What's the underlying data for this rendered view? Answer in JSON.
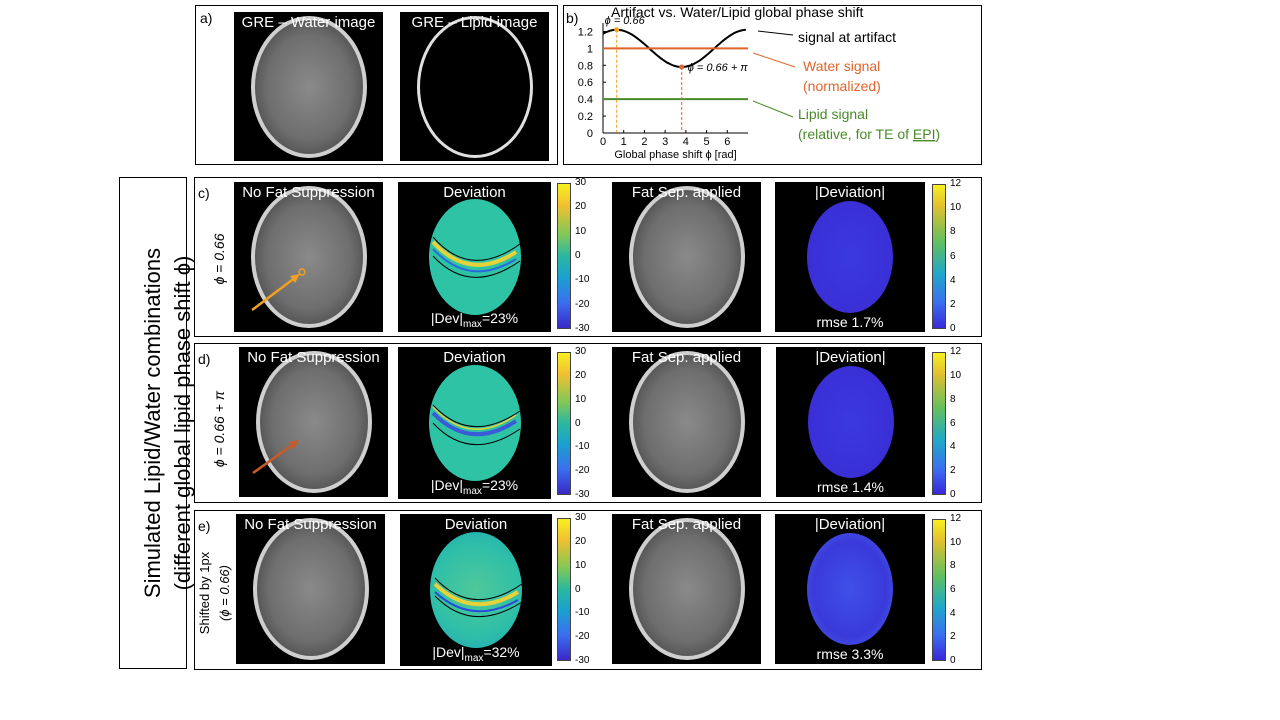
{
  "panel_labels": {
    "a": "a)",
    "b": "b)",
    "c": "c)",
    "d": "d)",
    "e": "e)"
  },
  "panel_a": {
    "water_title": "GRE – Water image",
    "lipid_title": "GRE – Lipid image"
  },
  "panel_b": {
    "title": "Artifact vs. Water/Lipid global phase shift",
    "phi_annot_1": "ϕ = 0.66",
    "phi_annot_2": "ϕ = 0.66 + π",
    "legend_artifact": "signal at artifact",
    "legend_water_1": "Water signal",
    "legend_water_2": "(normalized)",
    "legend_lipid_1": "Lipid signal",
    "legend_lipid_2_pre": "(relative, for TE of ",
    "legend_lipid_2_epi": "EPI",
    "legend_lipid_2_post": ")",
    "colors": {
      "artifact": "#000000",
      "water": "#e0642a",
      "lipid": "#4a8a2a",
      "marker": "#f0a020"
    }
  },
  "side_label": {
    "line1": "Simulated Lipid/Water combinations",
    "line2": "(different global lipid phase shift ϕ)"
  },
  "rows": {
    "c": {
      "phi_label": "ϕ = 0.66",
      "no_fat": "No Fat Suppression",
      "deviation": "Deviation",
      "dev_max_pre": "|Dev|",
      "dev_max_sub": "max",
      "dev_max_post": "=23%",
      "fat_sep": "Fat Sep. applied",
      "abs_dev": "|Deviation|",
      "rmse": "rmse 1.7%"
    },
    "d": {
      "phi_label": "ϕ = 0.66 + π",
      "no_fat": "No Fat Suppression",
      "deviation": "Deviation",
      "dev_max_pre": "|Dev|",
      "dev_max_sub": "max",
      "dev_max_post": "=23%",
      "fat_sep": "Fat Sep. applied",
      "abs_dev": "|Deviation|",
      "rmse": "rmse 1.4%"
    },
    "e": {
      "phi_label_1": "Shifted by 1px",
      "phi_label_2": "(ϕ = 0.66)",
      "no_fat": "No Fat Suppression",
      "deviation": "Deviation",
      "dev_max_pre": "|Dev|",
      "dev_max_sub": "max",
      "dev_max_post": "=32%",
      "fat_sep": "Fat Sep. applied",
      "abs_dev": "|Deviation|",
      "rmse": "rmse 3.3%"
    }
  },
  "colorbar_dev_ticks": [
    "30",
    "20",
    "10",
    "0",
    "-10",
    "-20",
    "-30"
  ],
  "colorbar_abs_ticks": [
    "12",
    "10",
    "8",
    "6",
    "4",
    "2",
    "0"
  ],
  "chart_data": {
    "type": "line",
    "title": "Artifact vs. Water/Lipid global phase shift",
    "xlabel": "Global phase shift ϕ [rad]",
    "ylabel": "",
    "xlim": [
      0,
      7
    ],
    "ylim": [
      0,
      1.3
    ],
    "x_ticks": [
      "0",
      "1",
      "2",
      "3",
      "4",
      "5",
      "6"
    ],
    "y_ticks": [
      "0",
      "0.2",
      "0.4",
      "0.6",
      "0.8",
      "1",
      "1.2"
    ],
    "series": [
      {
        "name": "signal at artifact",
        "x": [
          0,
          0.66,
          1.5,
          2.5,
          3.8,
          5.0,
          6.0,
          6.9
        ],
        "y": [
          1.16,
          1.22,
          1.15,
          0.92,
          0.78,
          0.92,
          1.15,
          1.22
        ]
      },
      {
        "name": "Water signal (normalized)",
        "x": [
          0,
          7
        ],
        "y": [
          1.0,
          1.0
        ]
      },
      {
        "name": "Lipid signal (relative, for TE of EPI)",
        "x": [
          0,
          7
        ],
        "y": [
          0.4,
          0.4
        ]
      }
    ],
    "markers": [
      {
        "label": "ϕ = 0.66",
        "x": 0.66,
        "y": 1.22
      },
      {
        "label": "ϕ = 0.66 + π",
        "x": 3.8,
        "y": 0.78
      }
    ]
  }
}
